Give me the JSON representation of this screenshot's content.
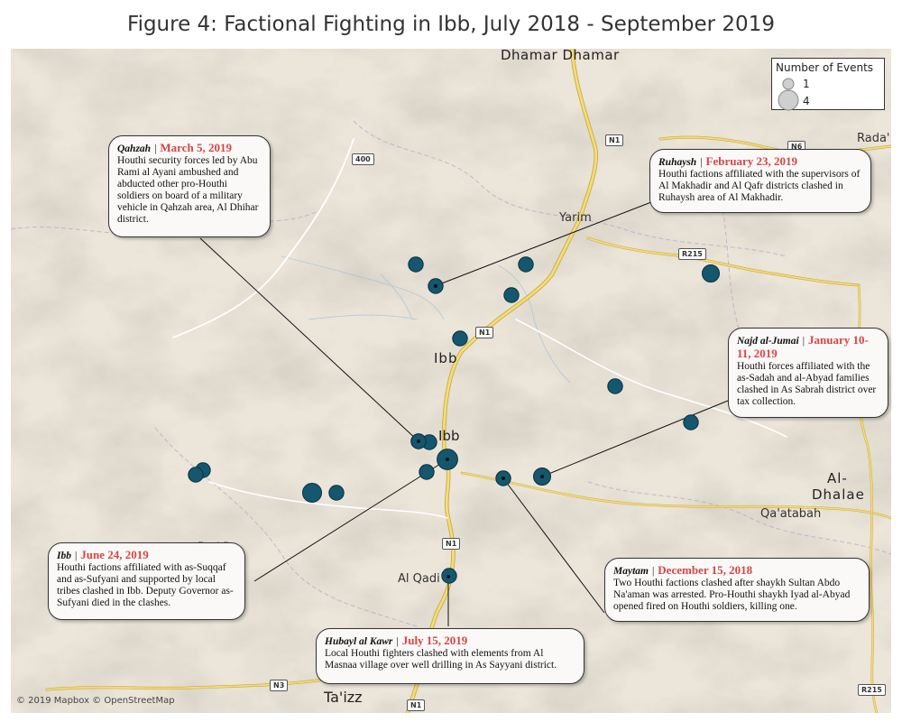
{
  "title": "Figure 4: Factional Fighting in Ibb, July 2018 - September 2019",
  "map_labels": {
    "dhamar": "Dhamar Dhamar",
    "yarim": "Yarim",
    "ibb_upper": "Ibb",
    "ibb": "Ibb",
    "al_dhalae_1": "Al-",
    "al_dhalae_2": "Dhalae",
    "qaatabah": "Qa'atabah",
    "al_qadi": "Al Qadi",
    "taizz": "Ta'izz",
    "radaa": "Rada'",
    "bani_saif": "Bani Sa"
  },
  "road_shields": {
    "n1_a": "N1",
    "n1_b": "N1",
    "n1_c": "N1",
    "n1_d": "N1",
    "n3": "N3",
    "r215_a": "R215",
    "r215_b": "R215",
    "r400": "400",
    "n6": "N6"
  },
  "legend": {
    "title": "Number of Events",
    "item_1": "1",
    "item_4": "4"
  },
  "copyright": "© 2019 Mapbox © OpenStreetMap",
  "colors": {
    "marker_fill": "#14576e",
    "marker_stroke": "#0a2f3d",
    "date_red": "#d64545",
    "land": "#ebe5da",
    "road": "#f2d66b"
  },
  "callouts": {
    "qahzah": {
      "place": "Qahzah",
      "date": "March 5, 2019",
      "text": "Houthi security forces led by Abu Rami al Ayani ambushed and abducted other pro-Houthi soldiers on board of a military vehicle in Qahzah area, Al Dhihar district."
    },
    "ruhaysh": {
      "place": "Ruhaysh",
      "date": "February 23, 2019",
      "text": "Houthi factions affiliated with the supervisors of Al Makhadir and Al Qafr districts clashed in Ruhaysh area of Al Makhadir."
    },
    "najd": {
      "place": "Najd al-Jumai",
      "date": "January 10-11, 2019",
      "text": "Houthi forces affiliated with the as-Sadah and al-Abyad families clashed in As Sabrah district over tax collection."
    },
    "ibb": {
      "place": "Ibb",
      "date": "June 24, 2019",
      "text": "Houthi factions affiliated with as-Suqqaf and as-Sufyani and supported by local tribes clashed in Ibb. Deputy Governor as-Sufyani died in the clashes."
    },
    "maytam": {
      "place": "Maytam",
      "date": "December 15, 2018",
      "text": "Two Houthi factions clashed after shaykh Sultan Abdo Na'aman was arrested. Pro-Houthi shaykh Iyad al-Abyad opened fired on Houthi soldiers, killing one."
    },
    "hubayl": {
      "place": "Hubayl al Kawr",
      "date": "July 15, 2019",
      "text": "Local Houthi fighters clashed with elements from Al Masnaa village over well drilling in As Sayyani district."
    }
  },
  "events": [
    {
      "count": 1
    },
    {
      "count": 1
    },
    {
      "count": 1
    },
    {
      "count": 1
    },
    {
      "count": 1
    },
    {
      "count": 2
    },
    {
      "count": 1
    },
    {
      "count": 1
    },
    {
      "count": 1
    },
    {
      "count": 1
    },
    {
      "count": 2
    },
    {
      "count": 1
    },
    {
      "count": 1
    },
    {
      "count": 1
    },
    {
      "count": 3
    },
    {
      "count": 1
    },
    {
      "count": 1
    },
    {
      "count": 2
    },
    {
      "count": 1
    },
    {
      "count": 4
    },
    {
      "count": 1
    }
  ]
}
